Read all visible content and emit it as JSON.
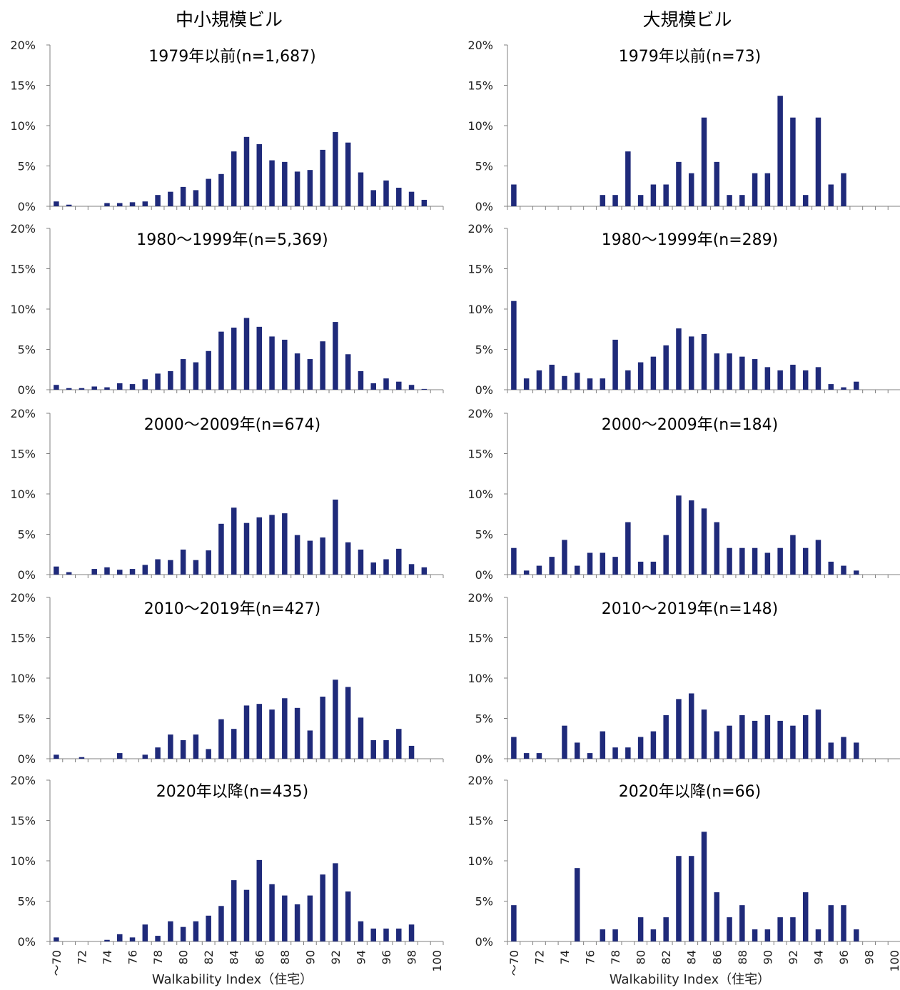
{
  "column_titles": [
    "中小規模ビル",
    "大規模ビル"
  ],
  "xlabel": "Walkability Index（住宅）",
  "x_tick_labels": [
    "～70",
    "72",
    "74",
    "76",
    "78",
    "80",
    "82",
    "84",
    "86",
    "88",
    "90",
    "92",
    "94",
    "96",
    "98",
    "100"
  ],
  "y_tick_labels": [
    "0%",
    "5%",
    "10%",
    "15%",
    "20%"
  ],
  "colors": {
    "bar": "#1f2a7a",
    "axis": "#808080"
  },
  "chart_data": [
    {
      "type": "bar",
      "column": "中小規模ビル",
      "title": "1979年以前(n=1,687)",
      "ylim": [
        0,
        20
      ],
      "values": [
        0.6,
        0.2,
        0,
        0,
        0.4,
        0.4,
        0.5,
        0.6,
        1.4,
        1.8,
        2.4,
        2.0,
        3.4,
        4.0,
        6.8,
        8.6,
        7.7,
        5.7,
        5.5,
        4.3,
        4.5,
        7.0,
        9.2,
        7.9,
        4.2,
        2.0,
        3.2,
        2.3,
        1.8,
        0.8,
        0
      ]
    },
    {
      "type": "bar",
      "column": "大規模ビル",
      "title": "1979年以前(n=73)",
      "ylim": [
        0,
        20
      ],
      "values": [
        2.7,
        0,
        0,
        0,
        0,
        0,
        0,
        1.4,
        1.4,
        6.8,
        1.4,
        2.7,
        2.7,
        5.5,
        4.1,
        11.0,
        5.5,
        1.4,
        1.4,
        4.1,
        4.1,
        13.7,
        11.0,
        1.4,
        11.0,
        2.7,
        4.1,
        0,
        0,
        0,
        0
      ]
    },
    {
      "type": "bar",
      "column": "中小規模ビル",
      "title": "1980～1999年(n=5,369)",
      "ylim": [
        0,
        20
      ],
      "values": [
        0.6,
        0.2,
        0.2,
        0.4,
        0.3,
        0.8,
        0.7,
        1.3,
        2.0,
        2.3,
        3.8,
        3.4,
        4.8,
        7.2,
        7.7,
        8.9,
        7.8,
        6.6,
        6.2,
        4.5,
        3.8,
        6.0,
        8.4,
        4.4,
        2.3,
        0.8,
        1.4,
        1.0,
        0.6,
        0.1,
        0
      ]
    },
    {
      "type": "bar",
      "column": "大規模ビル",
      "title": "1980～1999年(n=289)",
      "ylim": [
        0,
        20
      ],
      "values": [
        11.0,
        1.4,
        2.4,
        3.1,
        1.7,
        2.1,
        1.4,
        1.4,
        6.2,
        2.4,
        3.4,
        4.1,
        5.5,
        7.6,
        6.6,
        6.9,
        4.5,
        4.5,
        4.1,
        3.8,
        2.8,
        2.4,
        3.1,
        2.4,
        2.8,
        0.7,
        0.3,
        1.0,
        0,
        0,
        0
      ]
    },
    {
      "type": "bar",
      "column": "中小規模ビル",
      "title": "2000～2009年(n=674)",
      "ylim": [
        0,
        20
      ],
      "values": [
        1.0,
        0.3,
        0,
        0.7,
        0.9,
        0.6,
        0.7,
        1.2,
        1.9,
        1.8,
        3.1,
        1.8,
        3.0,
        6.3,
        8.3,
        6.4,
        7.1,
        7.4,
        7.6,
        4.9,
        4.2,
        4.6,
        9.3,
        4.0,
        3.1,
        1.5,
        1.9,
        3.2,
        1.3,
        0.9,
        0
      ]
    },
    {
      "type": "bar",
      "column": "大規模ビル",
      "title": "2000～2009年(n=184)",
      "ylim": [
        0,
        20
      ],
      "values": [
        3.3,
        0.5,
        1.1,
        2.2,
        4.3,
        1.1,
        2.7,
        2.7,
        2.2,
        6.5,
        1.6,
        1.6,
        4.9,
        9.8,
        9.2,
        8.2,
        6.5,
        3.3,
        3.3,
        3.3,
        2.7,
        3.3,
        4.9,
        3.3,
        4.3,
        1.6,
        1.1,
        0.5,
        0,
        0,
        0
      ]
    },
    {
      "type": "bar",
      "column": "中小規模ビル",
      "title": "2010～2019年(n=427)",
      "ylim": [
        0,
        20
      ],
      "values": [
        0.5,
        0,
        0.2,
        0,
        0,
        0.7,
        0,
        0.5,
        1.4,
        3.0,
        2.3,
        3.0,
        1.2,
        4.9,
        3.7,
        6.6,
        6.8,
        6.1,
        7.5,
        6.3,
        3.5,
        7.7,
        9.8,
        8.9,
        5.1,
        2.3,
        2.3,
        3.7,
        1.6,
        0,
        0
      ]
    },
    {
      "type": "bar",
      "column": "大規模ビル",
      "title": "2010～2019年(n=148)",
      "ylim": [
        0,
        20
      ],
      "values": [
        2.7,
        0.7,
        0.7,
        0,
        4.1,
        2.0,
        0.7,
        3.4,
        1.4,
        1.4,
        2.7,
        3.4,
        5.4,
        7.4,
        8.1,
        6.1,
        3.4,
        4.1,
        5.4,
        4.7,
        5.4,
        4.7,
        4.1,
        5.4,
        6.1,
        2.0,
        2.7,
        2.0,
        0,
        0,
        0
      ]
    },
    {
      "type": "bar",
      "column": "中小規模ビル",
      "title": "2020年以降(n=435)",
      "ylim": [
        0,
        20
      ],
      "values": [
        0.5,
        0,
        0,
        0,
        0.2,
        0.9,
        0.5,
        2.1,
        0.7,
        2.5,
        1.8,
        2.5,
        3.2,
        4.4,
        7.6,
        6.4,
        10.1,
        7.1,
        5.7,
        4.6,
        5.7,
        8.3,
        9.7,
        6.2,
        2.5,
        1.6,
        1.6,
        1.6,
        2.1,
        0,
        0
      ]
    },
    {
      "type": "bar",
      "column": "大規模ビル",
      "title": "2020年以降(n=66)",
      "ylim": [
        0,
        20
      ],
      "values": [
        4.5,
        0,
        0,
        0,
        0,
        9.1,
        0,
        1.5,
        1.5,
        0,
        3.0,
        1.5,
        3.0,
        10.6,
        10.6,
        13.6,
        6.1,
        3.0,
        4.5,
        1.5,
        1.5,
        3.0,
        3.0,
        6.1,
        1.5,
        4.5,
        4.5,
        1.5,
        0,
        0,
        0
      ]
    }
  ]
}
